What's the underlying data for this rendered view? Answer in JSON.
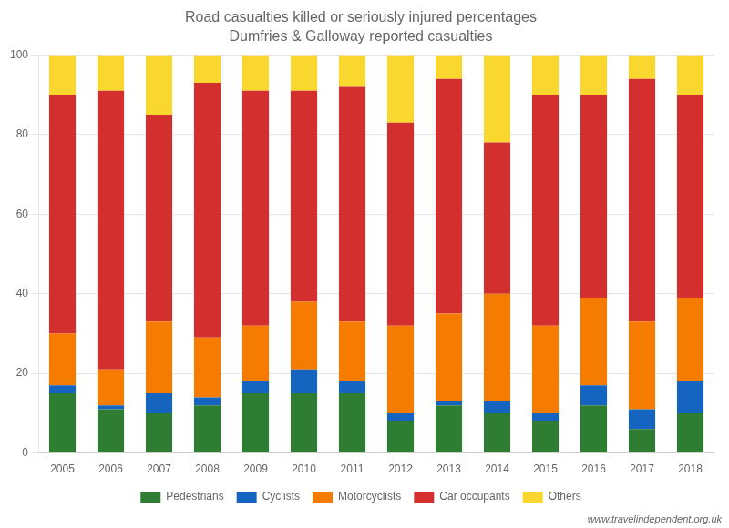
{
  "chart_data": {
    "type": "bar",
    "stacked": true,
    "title": "Road casualties killed or seriously injured percentages",
    "subtitle": "Dumfries & Galloway reported casualties",
    "annotations": [
      "www.travelindependent.org.uk"
    ],
    "categories": [
      "2005",
      "2006",
      "2007",
      "2008",
      "2009",
      "2010",
      "2011",
      "2012",
      "2013",
      "2014",
      "2015",
      "2016",
      "2017",
      "2018"
    ],
    "series": [
      {
        "name": "Pedestrians",
        "color": "#2e7d32",
        "values": [
          15,
          11,
          10,
          12,
          15,
          15,
          15,
          8,
          12,
          10,
          8,
          12,
          6,
          10
        ]
      },
      {
        "name": "Cyclists",
        "color": "#1565c0",
        "values": [
          2,
          1,
          5,
          2,
          3,
          6,
          3,
          2,
          1,
          3,
          2,
          5,
          5,
          8
        ]
      },
      {
        "name": "Motorcyclists",
        "color": "#f57c00",
        "values": [
          13,
          9,
          18,
          15,
          14,
          17,
          15,
          22,
          22,
          27,
          22,
          22,
          22,
          21
        ]
      },
      {
        "name": "Car occupants",
        "color": "#d32f2f",
        "values": [
          60,
          70,
          52,
          64,
          59,
          53,
          59,
          51,
          59,
          38,
          58,
          51,
          61,
          51
        ]
      },
      {
        "name": "Others",
        "color": "#f9d72f",
        "values": [
          10,
          9,
          15,
          7,
          9,
          9,
          8,
          17,
          6,
          22,
          10,
          10,
          6,
          10
        ]
      }
    ],
    "ylim": [
      0,
      100
    ],
    "yticks": [
      0,
      20,
      40,
      60,
      80,
      100
    ],
    "grid": true,
    "legend": "bottom"
  }
}
